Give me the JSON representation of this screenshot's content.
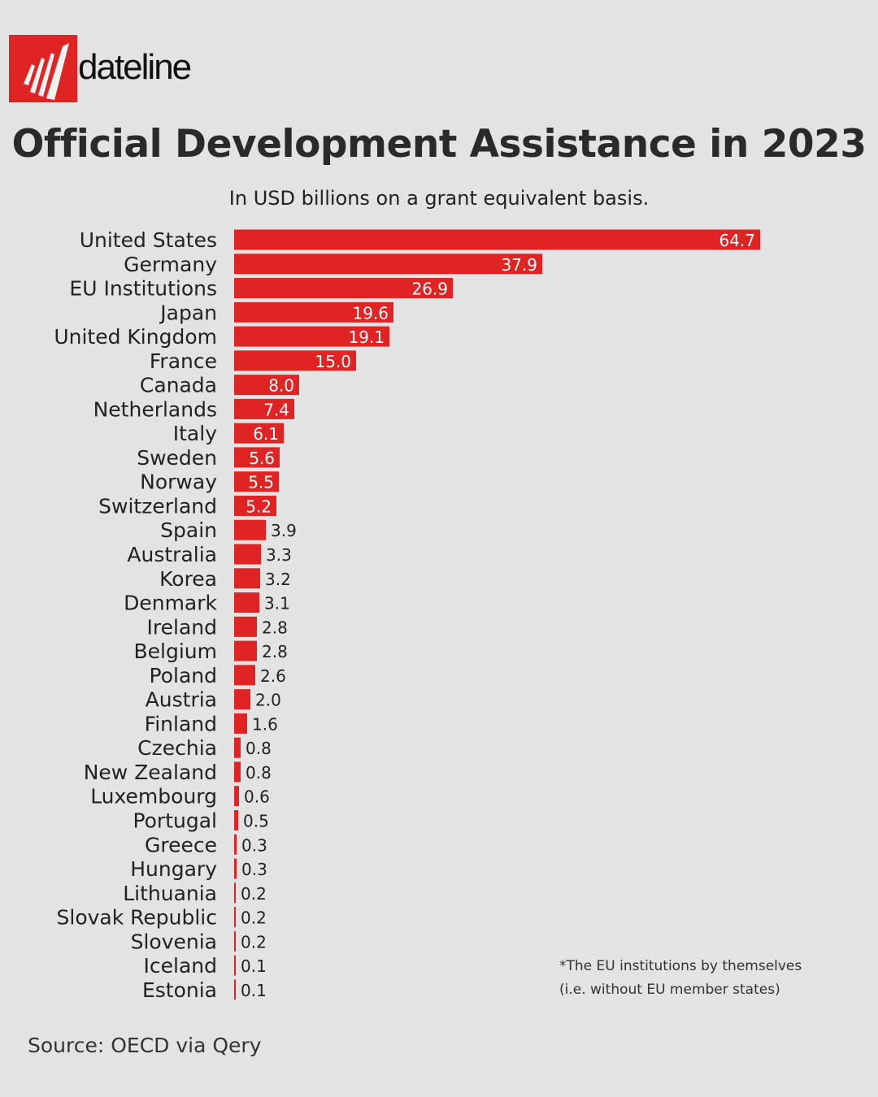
{
  "logo": {
    "text": "dateline",
    "icon": "sbs-logo-icon",
    "color": "#e02424"
  },
  "chart_data": {
    "type": "bar",
    "orientation": "horizontal",
    "title": "Official Development Assistance in 2023",
    "subtitle": "In USD billions on a grant equivalent basis.",
    "categories": [
      "United States",
      "Germany",
      "EU Institutions",
      "Japan",
      "United Kingdom",
      "France",
      "Canada",
      "Netherlands",
      "Italy",
      "Sweden",
      "Norway",
      "Switzerland",
      "Spain",
      "Australia",
      "Korea",
      "Denmark",
      "Ireland",
      "Belgium",
      "Poland",
      "Austria",
      "Finland",
      "Czechia",
      "New Zealand",
      "Luxembourg",
      "Portugal",
      "Greece",
      "Hungary",
      "Lithuania",
      "Slovak Republic",
      "Slovenia",
      "Iceland",
      "Estonia"
    ],
    "values": [
      64.7,
      37.9,
      26.9,
      19.6,
      19.1,
      15.0,
      8.0,
      7.4,
      6.1,
      5.6,
      5.5,
      5.2,
      3.9,
      3.3,
      3.2,
      3.1,
      2.8,
      2.8,
      2.6,
      2.0,
      1.6,
      0.8,
      0.8,
      0.6,
      0.5,
      0.3,
      0.3,
      0.2,
      0.2,
      0.2,
      0.1,
      0.1
    ],
    "xlim": [
      0,
      64.7
    ],
    "grid": false,
    "bar_color": "#e02424",
    "annotation": "*The EU institutions by themselves (i.e. without EU member states)"
  },
  "footnote": [
    "*The EU institutions by themselves",
    "(i.e. without EU member states)"
  ],
  "source": "Source: OECD via Qery"
}
